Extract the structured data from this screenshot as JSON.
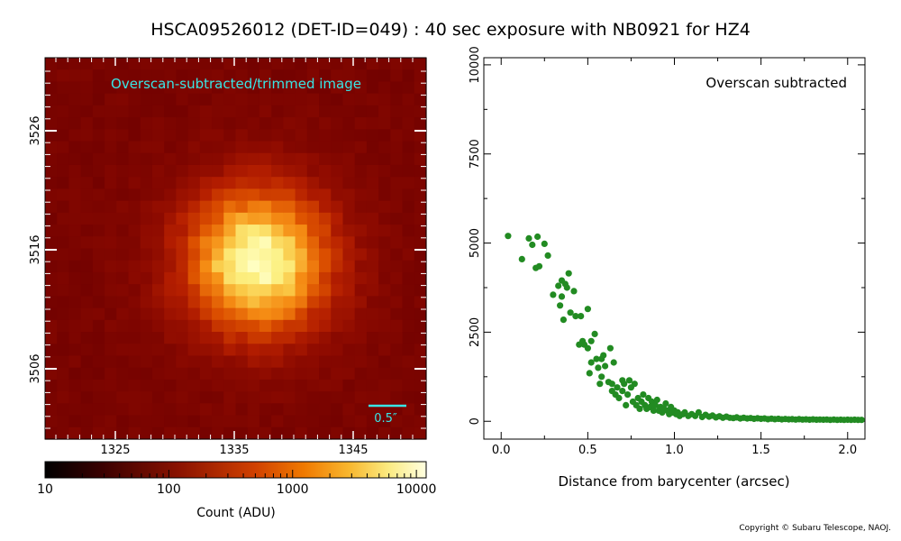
{
  "title": "HSCA09526012 (DET-ID=049) :  40 sec exposure with NB0921 for HZ4",
  "copyright": "Copyright © Subaru Telescope, NAOJ.",
  "image_panel": {
    "label": "Overscan-subtracted/trimmed image",
    "label_color": "#39e6e6",
    "scalebar_label": "0.5″",
    "x_ticks": [
      "1325",
      "1335",
      "1345"
    ],
    "y_ticks": [
      "3526",
      "3516",
      "3506"
    ],
    "colorbar": {
      "ticks": [
        "10",
        "100",
        "1000",
        "10000"
      ],
      "label": "Count (ADU)",
      "scale": "log",
      "range": [
        10,
        12000
      ]
    },
    "peak_center": [
      1337,
      3515
    ]
  },
  "chart_data": {
    "type": "scatter",
    "annotation": "Overscan subtracted",
    "xlabel": "Distance from barycenter (arcsec)",
    "ylabel": "",
    "xlim": [
      -0.1,
      2.1
    ],
    "ylim": [
      -500,
      10200
    ],
    "x_ticks": [
      "0.0",
      "0.5",
      "1.0",
      "1.5",
      "2.0"
    ],
    "y_ticks": [
      "0",
      "2500",
      "5000",
      "7500",
      "10000"
    ],
    "marker_color": "#228b22",
    "points": [
      [
        0.04,
        5200
      ],
      [
        0.12,
        4550
      ],
      [
        0.16,
        5130
      ],
      [
        0.18,
        4950
      ],
      [
        0.2,
        4300
      ],
      [
        0.21,
        5180
      ],
      [
        0.22,
        4350
      ],
      [
        0.25,
        4980
      ],
      [
        0.27,
        4650
      ],
      [
        0.3,
        3550
      ],
      [
        0.33,
        3800
      ],
      [
        0.34,
        3250
      ],
      [
        0.35,
        3950
      ],
      [
        0.35,
        3500
      ],
      [
        0.36,
        2850
      ],
      [
        0.37,
        3850
      ],
      [
        0.38,
        3750
      ],
      [
        0.39,
        4150
      ],
      [
        0.4,
        3050
      ],
      [
        0.42,
        3650
      ],
      [
        0.43,
        2950
      ],
      [
        0.45,
        2150
      ],
      [
        0.46,
        2950
      ],
      [
        0.47,
        2250
      ],
      [
        0.48,
        2150
      ],
      [
        0.5,
        2050
      ],
      [
        0.5,
        3150
      ],
      [
        0.51,
        1350
      ],
      [
        0.52,
        1650
      ],
      [
        0.52,
        2250
      ],
      [
        0.54,
        2450
      ],
      [
        0.55,
        1750
      ],
      [
        0.56,
        1500
      ],
      [
        0.57,
        1050
      ],
      [
        0.58,
        1250
      ],
      [
        0.58,
        1750
      ],
      [
        0.59,
        1850
      ],
      [
        0.6,
        1550
      ],
      [
        0.62,
        1100
      ],
      [
        0.63,
        2050
      ],
      [
        0.64,
        1050
      ],
      [
        0.64,
        850
      ],
      [
        0.65,
        1650
      ],
      [
        0.66,
        750
      ],
      [
        0.67,
        950
      ],
      [
        0.68,
        650
      ],
      [
        0.7,
        1150
      ],
      [
        0.7,
        850
      ],
      [
        0.71,
        1050
      ],
      [
        0.72,
        450
      ],
      [
        0.73,
        750
      ],
      [
        0.74,
        1150
      ],
      [
        0.75,
        950
      ],
      [
        0.76,
        550
      ],
      [
        0.77,
        1050
      ],
      [
        0.78,
        450
      ],
      [
        0.79,
        650
      ],
      [
        0.8,
        350
      ],
      [
        0.81,
        550
      ],
      [
        0.82,
        750
      ],
      [
        0.83,
        450
      ],
      [
        0.84,
        350
      ],
      [
        0.85,
        650
      ],
      [
        0.86,
        400
      ],
      [
        0.87,
        550
      ],
      [
        0.88,
        300
      ],
      [
        0.89,
        450
      ],
      [
        0.9,
        600
      ],
      [
        0.91,
        300
      ],
      [
        0.92,
        400
      ],
      [
        0.93,
        250
      ],
      [
        0.94,
        350
      ],
      [
        0.95,
        500
      ],
      [
        0.96,
        300
      ],
      [
        0.97,
        200
      ],
      [
        0.98,
        400
      ],
      [
        0.99,
        250
      ],
      [
        1.0,
        300
      ],
      [
        1.01,
        200
      ],
      [
        1.02,
        250
      ],
      [
        1.03,
        150
      ],
      [
        1.05,
        200
      ],
      [
        1.06,
        250
      ],
      [
        1.08,
        150
      ],
      [
        1.1,
        200
      ],
      [
        1.12,
        150
      ],
      [
        1.14,
        250
      ],
      [
        1.16,
        120
      ],
      [
        1.18,
        180
      ],
      [
        1.2,
        130
      ],
      [
        1.22,
        160
      ],
      [
        1.24,
        110
      ],
      [
        1.26,
        140
      ],
      [
        1.28,
        100
      ],
      [
        1.3,
        130
      ],
      [
        1.32,
        100
      ],
      [
        1.34,
        90
      ],
      [
        1.36,
        110
      ],
      [
        1.38,
        80
      ],
      [
        1.4,
        100
      ],
      [
        1.42,
        80
      ],
      [
        1.44,
        90
      ],
      [
        1.46,
        70
      ],
      [
        1.48,
        85
      ],
      [
        1.5,
        70
      ],
      [
        1.52,
        80
      ],
      [
        1.54,
        60
      ],
      [
        1.56,
        75
      ],
      [
        1.58,
        60
      ],
      [
        1.6,
        70
      ],
      [
        1.62,
        55
      ],
      [
        1.64,
        65
      ],
      [
        1.66,
        55
      ],
      [
        1.68,
        60
      ],
      [
        1.7,
        50
      ],
      [
        1.72,
        60
      ],
      [
        1.74,
        50
      ],
      [
        1.76,
        55
      ],
      [
        1.78,
        45
      ],
      [
        1.8,
        55
      ],
      [
        1.82,
        45
      ],
      [
        1.84,
        50
      ],
      [
        1.86,
        45
      ],
      [
        1.88,
        50
      ],
      [
        1.9,
        40
      ],
      [
        1.92,
        50
      ],
      [
        1.94,
        40
      ],
      [
        1.96,
        45
      ],
      [
        1.98,
        40
      ],
      [
        2.0,
        45
      ],
      [
        2.02,
        40
      ],
      [
        2.04,
        45
      ],
      [
        2.06,
        40
      ],
      [
        2.08,
        40
      ]
    ]
  }
}
